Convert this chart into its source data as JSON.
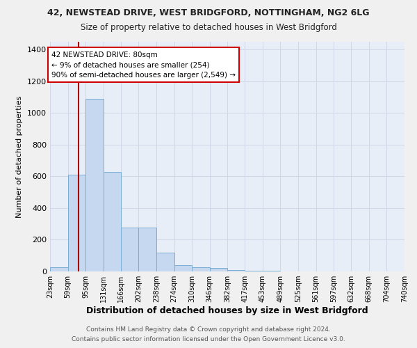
{
  "title1": "42, NEWSTEAD DRIVE, WEST BRIDGFORD, NOTTINGHAM, NG2 6LG",
  "title2": "Size of property relative to detached houses in West Bridgford",
  "xlabel": "Distribution of detached houses by size in West Bridgford",
  "ylabel": "Number of detached properties",
  "bin_edges": [
    23,
    59,
    95,
    131,
    166,
    202,
    238,
    274,
    310,
    346,
    382,
    417,
    453,
    489,
    525,
    561,
    597,
    632,
    668,
    704,
    740
  ],
  "bar_heights": [
    25,
    610,
    1090,
    630,
    275,
    275,
    120,
    40,
    25,
    20,
    10,
    5,
    3,
    2,
    1,
    1,
    0,
    0,
    0,
    0
  ],
  "bar_color": "#c5d8f0",
  "bar_edge_color": "#7aadd4",
  "background_color": "#e8eef8",
  "grid_color": "#d0d8e8",
  "property_size": 80,
  "red_line_color": "#aa0000",
  "annotation_text": "42 NEWSTEAD DRIVE: 80sqm\n← 9% of detached houses are smaller (254)\n90% of semi-detached houses are larger (2,549) →",
  "annotation_box_color": "#ffffff",
  "annotation_box_edge_color": "#cc0000",
  "ylim": [
    0,
    1450
  ],
  "yticks": [
    0,
    200,
    400,
    600,
    800,
    1000,
    1200,
    1400
  ],
  "footnote1": "Contains HM Land Registry data © Crown copyright and database right 2024.",
  "footnote2": "Contains public sector information licensed under the Open Government Licence v3.0."
}
